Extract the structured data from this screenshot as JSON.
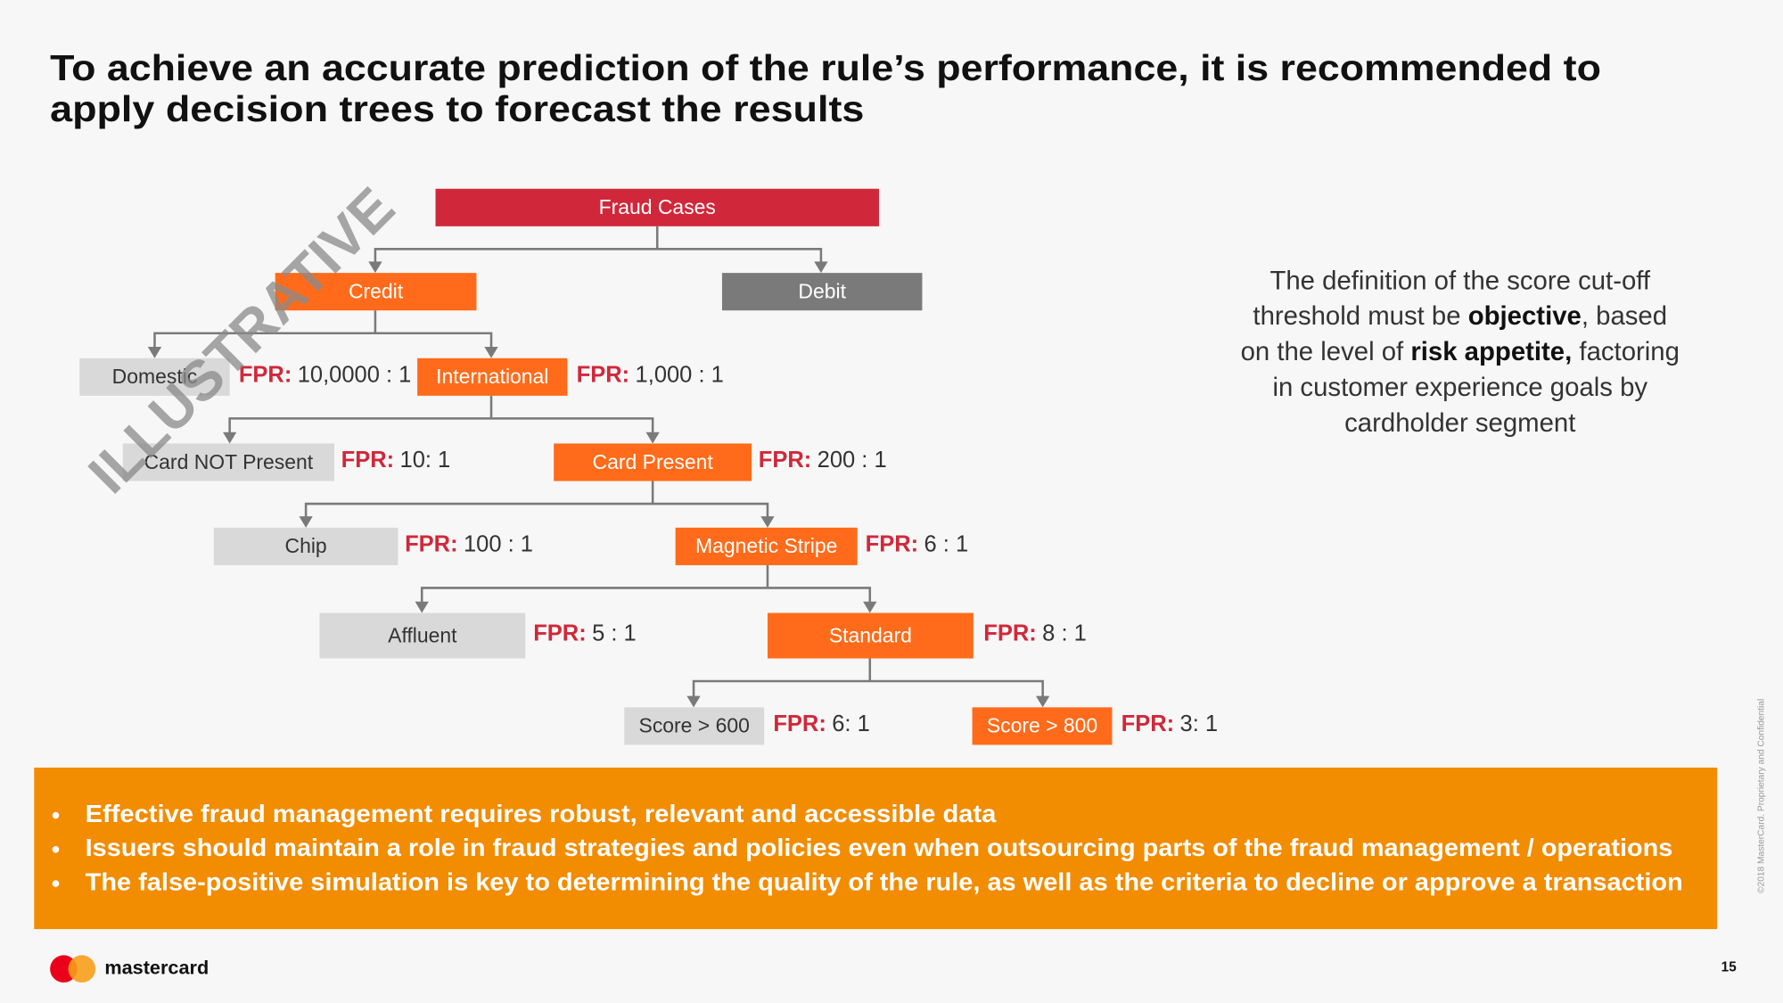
{
  "title": [
    "To achieve an accurate prediction of the rule’s performance, it is recommended to",
    "apply decision trees to forecast the results"
  ],
  "watermark": "ILLUSTRATIVE",
  "nodes": [
    {
      "label": "Fraud Cases"
    },
    {
      "label": "Credit"
    },
    {
      "label": "Debit"
    },
    {
      "label": "Domestic",
      "fpr": {
        "key": "FPR:",
        "value": "10,0000 : 1"
      }
    },
    {
      "label": "International",
      "fpr": {
        "key": "FPR:",
        "value": "1,000 : 1"
      }
    },
    {
      "label": "Card NOT Present",
      "fpr": {
        "key": "FPR:",
        "value": "10: 1"
      }
    },
    {
      "label": "Card Present",
      "fpr": {
        "key": "FPR:",
        "value": "200 : 1"
      }
    },
    {
      "label": "Chip",
      "fpr": {
        "key": "FPR:",
        "value": "100 : 1"
      }
    },
    {
      "label": "Magnetic Stripe",
      "fpr": {
        "key": "FPR:",
        "value": "6 : 1"
      }
    },
    {
      "label": "Affluent",
      "fpr": {
        "key": "FPR:",
        "value": "5 : 1"
      }
    },
    {
      "label": "Standard",
      "fpr": {
        "key": "FPR:",
        "value": "8 : 1"
      }
    },
    {
      "label": "Score > 600",
      "fpr": {
        "key": "FPR:",
        "value": "6: 1"
      }
    },
    {
      "label": "Score > 800",
      "fpr": {
        "key": "FPR:",
        "value": "3: 1"
      }
    }
  ],
  "side_note": [
    [
      {
        "text": "The definition of the score cut-off",
        "bold": false
      }
    ],
    [
      {
        "text": "threshold must be ",
        "bold": false
      },
      {
        "text": "objective",
        "bold": true
      },
      {
        "text": ", based",
        "bold": false
      }
    ],
    [
      {
        "text": "on the level of ",
        "bold": false
      },
      {
        "text": "risk appetite,",
        "bold": true
      },
      {
        "text": " factoring",
        "bold": false
      }
    ],
    [
      {
        "text": "in customer experience goals by",
        "bold": false
      }
    ],
    [
      {
        "text": "cardholder segment",
        "bold": false
      }
    ]
  ],
  "bullets": [
    "Effective fraud management requires robust, relevant and accessible data",
    "Issuers should maintain a role in fraud strategies and policies even when outsourcing parts of the fraud management / operations",
    "The false-positive simulation is key to determining the quality of the rule, as well as the criteria to decline or approve a transaction"
  ],
  "footer": {
    "brand": "mastercard",
    "page": "15",
    "copyright": "©2018 MasterCard. Proprietary and Confidential"
  }
}
